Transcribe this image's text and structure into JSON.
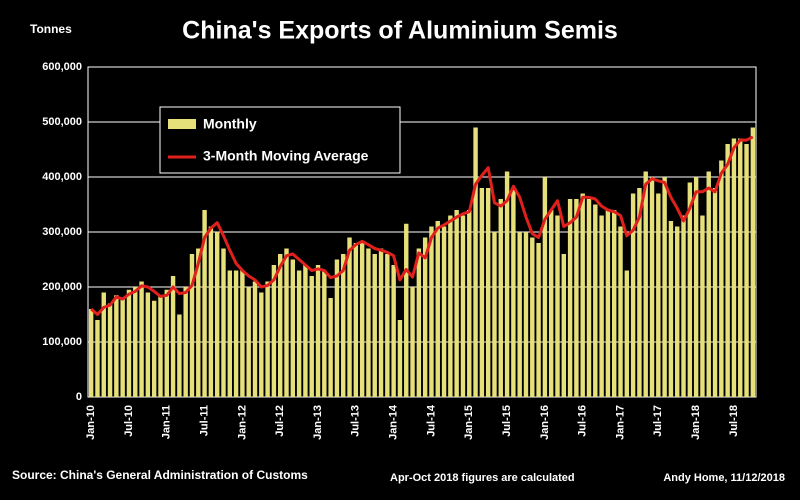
{
  "chart_data": {
    "type": "bar-line",
    "title": "China's Exports of Aluminium Semis",
    "y_label": "Tonnes",
    "source": "Source: China's General Administration of Customs",
    "note": "Apr-Oct 2018 figures are calculated",
    "credit": "Andy Home, 11/12/2018",
    "categories": [
      "Jan-10",
      null,
      null,
      null,
      null,
      null,
      "Jul-10",
      null,
      null,
      null,
      null,
      null,
      "Jan-11",
      null,
      null,
      null,
      null,
      null,
      "Jul-11",
      null,
      null,
      null,
      null,
      null,
      "Jan-12",
      null,
      null,
      null,
      null,
      null,
      "Jul-12",
      null,
      null,
      null,
      null,
      null,
      "Jan-13",
      null,
      null,
      null,
      null,
      null,
      "Jul-13",
      null,
      null,
      null,
      null,
      null,
      "Jan-14",
      null,
      null,
      null,
      null,
      null,
      "Jul-14",
      null,
      null,
      null,
      null,
      null,
      "Jan-15",
      null,
      null,
      null,
      null,
      null,
      "Jul-15",
      null,
      null,
      null,
      null,
      null,
      "Jan-16",
      null,
      null,
      null,
      null,
      null,
      "Jul-16",
      null,
      null,
      null,
      null,
      null,
      "Jan-17",
      null,
      null,
      null,
      null,
      null,
      "Jul-17",
      null,
      null,
      null,
      null,
      null,
      "Jan-18",
      null,
      null,
      null,
      null,
      null,
      "Jul-18",
      null,
      null,
      null
    ],
    "series": [
      {
        "name": "Monthly",
        "color": "#e6e07a",
        "values": [
          160000,
          140000,
          190000,
          170000,
          185000,
          180000,
          195000,
          200000,
          210000,
          190000,
          175000,
          185000,
          195000,
          220000,
          150000,
          200000,
          260000,
          270000,
          340000,
          310000,
          300000,
          270000,
          230000,
          230000,
          230000,
          200000,
          210000,
          190000,
          210000,
          240000,
          260000,
          270000,
          250000,
          230000,
          240000,
          220000,
          240000,
          230000,
          180000,
          250000,
          260000,
          290000,
          280000,
          280000,
          270000,
          260000,
          270000,
          260000,
          240000,
          140000,
          315000,
          200000,
          270000,
          290000,
          310000,
          320000,
          310000,
          330000,
          340000,
          330000,
          340000,
          490000,
          380000,
          380000,
          300000,
          360000,
          410000,
          380000,
          300000,
          300000,
          290000,
          280000,
          400000,
          340000,
          330000,
          260000,
          360000,
          360000,
          370000,
          360000,
          350000,
          330000,
          340000,
          340000,
          310000,
          230000,
          370000,
          380000,
          410000,
          400000,
          370000,
          400000,
          320000,
          310000,
          330000,
          390000,
          400000,
          330000,
          410000,
          380000,
          430000,
          460000,
          470000,
          470000,
          460000,
          490000
        ]
      },
      {
        "name": "3-Month Moving Average",
        "color": "#e0201c",
        "values": [
          160000,
          150000,
          163000,
          167000,
          182000,
          178000,
          187000,
          192000,
          202000,
          200000,
          192000,
          183000,
          185000,
          200000,
          188000,
          190000,
          203000,
          243000,
          290000,
          307000,
          317000,
          293000,
          267000,
          243000,
          230000,
          220000,
          213000,
          200000,
          203000,
          213000,
          237000,
          257000,
          260000,
          250000,
          240000,
          230000,
          233000,
          230000,
          217000,
          220000,
          230000,
          267000,
          277000,
          283000,
          277000,
          270000,
          267000,
          263000,
          257000,
          213000,
          232000,
          218000,
          262000,
          253000,
          290000,
          307000,
          313000,
          320000,
          327000,
          333000,
          337000,
          387000,
          403000,
          417000,
          353000,
          347000,
          357000,
          383000,
          363000,
          327000,
          297000,
          290000,
          323000,
          340000,
          357000,
          310000,
          317000,
          327000,
          363000,
          363000,
          360000,
          347000,
          340000,
          337000,
          330000,
          293000,
          303000,
          327000,
          387000,
          397000,
          393000,
          390000,
          363000,
          343000,
          320000,
          343000,
          373000,
          373000,
          380000,
          373000,
          407000,
          423000,
          453000,
          467000,
          467000,
          473000
        ]
      }
    ],
    "ylim": [
      0,
      600000
    ],
    "yticks": [
      0,
      {
        "value": 100000,
        "label": "100,000"
      },
      {
        "value": 200000,
        "label": "200,000"
      },
      {
        "value": 300000,
        "label": "300,000"
      },
      {
        "value": 400000,
        "label": "400,000"
      },
      {
        "value": 500000,
        "label": "500,000"
      },
      {
        "value": 600000,
        "label": "600,000"
      }
    ],
    "grid": true
  }
}
